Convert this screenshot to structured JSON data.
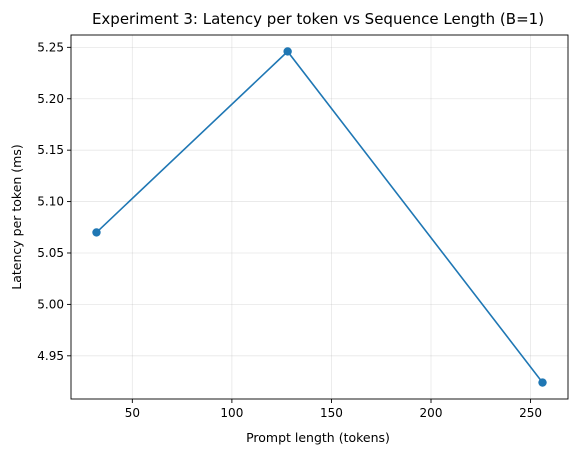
{
  "chart_data": {
    "type": "line",
    "title": "Experiment 3: Latency per token vs Sequence Length (B=1)",
    "xlabel": "Prompt length (tokens)",
    "ylabel": "Latency per token (ms)",
    "xlim": [
      19.2,
      268.8
    ],
    "ylim": [
      4.908,
      5.262
    ],
    "xticks": [
      50,
      100,
      150,
      200,
      250
    ],
    "xtick_labels": [
      "50",
      "100",
      "150",
      "200",
      "250"
    ],
    "yticks": [
      4.95,
      5.0,
      5.05,
      5.1,
      5.15,
      5.2,
      5.25
    ],
    "ytick_labels": [
      "4.95",
      "5.00",
      "5.05",
      "5.10",
      "5.15",
      "5.20",
      "5.25"
    ],
    "grid": true,
    "series": [
      {
        "x": [
          32,
          128,
          256
        ],
        "y": [
          5.07,
          5.246,
          4.924
        ],
        "color": "#1f77b4",
        "marker": "circle"
      }
    ]
  }
}
